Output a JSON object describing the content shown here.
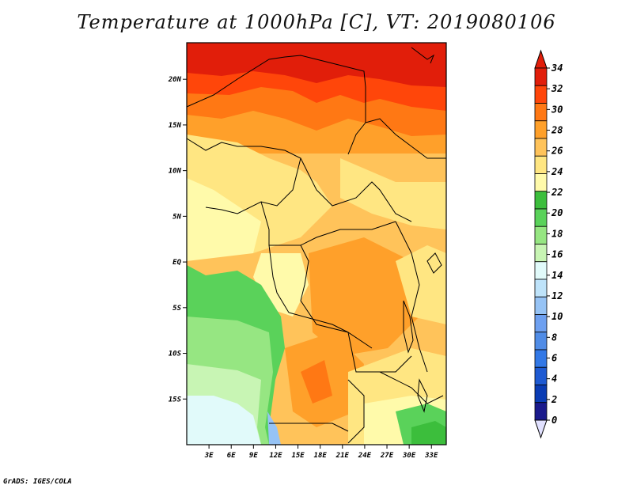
{
  "title": "Temperature at 1000hPa [C], VT: 2019080106",
  "footer": "GrADS: IGES/COLA",
  "map": {
    "region": "Central Africa",
    "lon_range": [
      0,
      35
    ],
    "lat_range": [
      -20,
      24
    ],
    "lon_ticks": [
      {
        "value": 3,
        "label": "3E"
      },
      {
        "value": 6,
        "label": "6E"
      },
      {
        "value": 9,
        "label": "9E"
      },
      {
        "value": 12,
        "label": "12E"
      },
      {
        "value": 15,
        "label": "15E"
      },
      {
        "value": 18,
        "label": "18E"
      },
      {
        "value": 21,
        "label": "21E"
      },
      {
        "value": 24,
        "label": "24E"
      },
      {
        "value": 27,
        "label": "27E"
      },
      {
        "value": 30,
        "label": "30E"
      },
      {
        "value": 33,
        "label": "33E"
      }
    ],
    "lat_ticks": [
      {
        "value": 20,
        "label": "20N"
      },
      {
        "value": 15,
        "label": "15N"
      },
      {
        "value": 10,
        "label": "10N"
      },
      {
        "value": 5,
        "label": "5N"
      },
      {
        "value": 0,
        "label": "EQ"
      },
      {
        "value": -5,
        "label": "5S"
      },
      {
        "value": -10,
        "label": "10S"
      },
      {
        "value": -15,
        "label": "15S"
      }
    ]
  },
  "colorbar": {
    "levels": [
      "0",
      "2",
      "4",
      "6",
      "8",
      "10",
      "12",
      "14",
      "16",
      "18",
      "20",
      "22",
      "24",
      "26",
      "28",
      "30",
      "32",
      "34"
    ],
    "colors": [
      "#1a1a8c",
      "#0a3cb4",
      "#1e5ad2",
      "#3278e6",
      "#508ce6",
      "#6ea0f0",
      "#96c3f5",
      "#bee3fa",
      "#e1fafa",
      "#c8f5b4",
      "#96e682",
      "#5ad25a",
      "#3cbe3c",
      "#fffaaa",
      "#ffe682",
      "#ffc35a",
      "#ffa02a",
      "#ff7814",
      "#ff460a",
      "#e11e0a"
    ],
    "under_color": "#e1e1ff",
    "over_color": "#e11e0a"
  }
}
